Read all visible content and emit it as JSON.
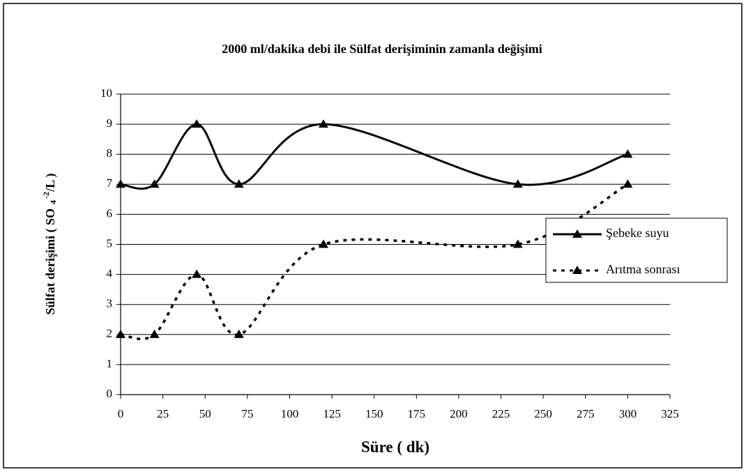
{
  "chart_data": {
    "type": "line",
    "title": "2000 ml/dakika debi ile Sülfat derişiminin zamanla değişimi",
    "xlabel": "Süre  ( dk)",
    "ylabel_parts": [
      "Sülfat derişimi ( SO",
      "4",
      "-2",
      "/L )"
    ],
    "x": [
      0,
      20,
      45,
      70,
      120,
      235,
      300
    ],
    "series": [
      {
        "name": "Şebeke suyu",
        "color": "#000000",
        "dash": "solid",
        "values": [
          7,
          7,
          9,
          7,
          9,
          7,
          8
        ]
      },
      {
        "name": "Arıtma sonrası",
        "color": "#000000",
        "dash": "dotted",
        "values": [
          2,
          2,
          4,
          2,
          5,
          5,
          7
        ]
      }
    ],
    "xlim": [
      0,
      325
    ],
    "xticks": [
      0,
      25,
      50,
      75,
      100,
      125,
      150,
      175,
      200,
      225,
      250,
      275,
      300,
      325
    ],
    "ylim": [
      0,
      10
    ],
    "yticks": [
      0,
      1,
      2,
      3,
      4,
      5,
      6,
      7,
      8,
      9,
      10
    ],
    "grid": true,
    "smooth": true,
    "legend": "right"
  }
}
